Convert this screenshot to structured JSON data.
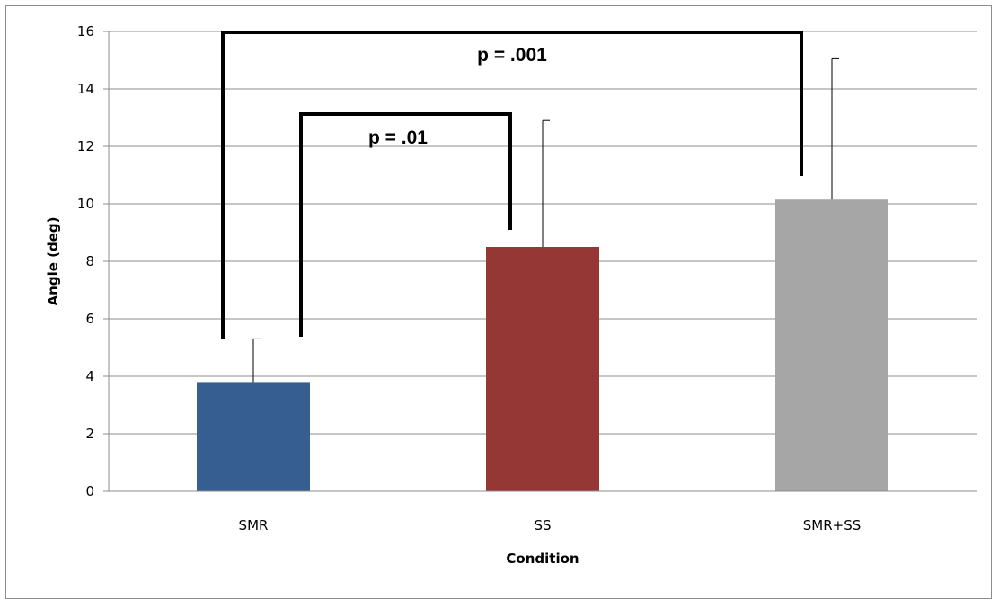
{
  "chart_data": {
    "type": "bar",
    "title": "",
    "xlabel": "Condition",
    "ylabel": "Angle (deg)",
    "ylim": [
      0,
      16
    ],
    "yticks": [
      "0",
      "2",
      "4",
      "6",
      "8",
      "10",
      "12",
      "14",
      "16"
    ],
    "categories": [
      "SMR",
      "SS",
      "SMR+SS"
    ],
    "values": [
      3.8,
      8.5,
      10.15
    ],
    "error_upper": [
      1.5,
      4.4,
      4.9
    ],
    "bar_colors": [
      "#375e91",
      "#953735",
      "#a6a6a6"
    ],
    "grid": true,
    "legend": "none",
    "significance": [
      {
        "from": "SMR",
        "to": "SMR+SS",
        "label": "p = .001"
      },
      {
        "from": "SMR",
        "to": "SS",
        "label": "p = .01"
      }
    ]
  }
}
